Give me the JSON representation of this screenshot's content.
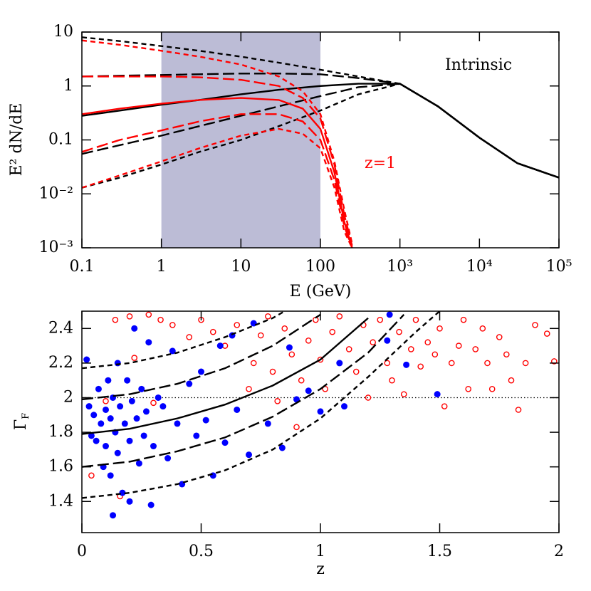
{
  "chart_data": [
    {
      "type": "line",
      "xlabel": "E (GeV)",
      "ylabel": "E² dN/dE",
      "log_x": true,
      "log_y": true,
      "xlim": [
        0.1,
        100000
      ],
      "ylim": [
        0.001,
        10
      ],
      "xticks": [
        0.1,
        1,
        10,
        100,
        {
          "value": 1000,
          "label": "10³"
        },
        {
          "value": 10000,
          "label": "10⁴"
        },
        {
          "value": 100000,
          "label": "10⁵"
        }
      ],
      "yticks": [
        {
          "value": 0.001,
          "label": "10⁻³"
        },
        {
          "value": 0.01,
          "label": "10⁻²"
        },
        0.1,
        1,
        10
      ],
      "shade": {
        "range": [
          1,
          100
        ],
        "color": "#bcbcd6"
      },
      "annotations": [
        {
          "text": "Intrinsic",
          "color": "#000000"
        },
        {
          "text": "z=1",
          "color": "#ff0000"
        }
      ],
      "series": [
        {
          "color": "#000000",
          "dash": "short",
          "x": [
            0.1,
            0.3,
            1,
            3,
            10,
            30,
            100,
            300,
            1000,
            3000,
            10000,
            30000,
            100000
          ],
          "values": [
            8,
            6.8,
            5.5,
            4.5,
            3.5,
            2.7,
            2.0,
            1.5,
            1.1,
            0.42,
            0.11,
            0.037,
            0.02
          ]
        },
        {
          "color": "#000000",
          "dash": "long",
          "x": [
            0.1,
            0.3,
            1,
            3,
            10,
            30,
            100,
            300,
            1000,
            3000,
            10000,
            30000,
            100000
          ],
          "values": [
            1.5,
            1.55,
            1.6,
            1.65,
            1.7,
            1.7,
            1.65,
            1.4,
            1.1,
            0.42,
            0.11,
            0.037,
            0.02
          ]
        },
        {
          "color": "#000000",
          "dash": "solid",
          "x": [
            0.1,
            0.3,
            1,
            3,
            10,
            30,
            100,
            300,
            1000,
            3000,
            10000,
            30000,
            100000
          ],
          "values": [
            0.28,
            0.35,
            0.45,
            0.55,
            0.7,
            0.85,
            1.0,
            1.1,
            1.1,
            0.42,
            0.11,
            0.037,
            0.02
          ]
        },
        {
          "color": "#000000",
          "dash": "long",
          "x": [
            0.1,
            0.3,
            1,
            3,
            10,
            30,
            100,
            300,
            1000,
            3000,
            10000,
            30000,
            100000
          ],
          "values": [
            0.055,
            0.08,
            0.12,
            0.18,
            0.28,
            0.42,
            0.65,
            0.95,
            1.1,
            0.42,
            0.11,
            0.037,
            0.02
          ]
        },
        {
          "color": "#000000",
          "dash": "short",
          "x": [
            0.1,
            0.3,
            1,
            3,
            10,
            30,
            100,
            300,
            1000,
            3000,
            10000,
            30000,
            100000
          ],
          "values": [
            0.013,
            0.02,
            0.035,
            0.06,
            0.1,
            0.18,
            0.35,
            0.7,
            1.1,
            0.42,
            0.11,
            0.037,
            0.02
          ]
        },
        {
          "color": "#ff0000",
          "dash": "short",
          "x": [
            0.1,
            0.3,
            1,
            3,
            10,
            30,
            60,
            100,
            150,
            200,
            250
          ],
          "values": [
            7,
            5.8,
            4.5,
            3.5,
            2.5,
            1.5,
            0.8,
            0.3,
            0.04,
            0.005,
            0.0012
          ]
        },
        {
          "color": "#ff0000",
          "dash": "long",
          "x": [
            0.1,
            0.3,
            1,
            3,
            10,
            30,
            60,
            100,
            150,
            200,
            250
          ],
          "values": [
            1.5,
            1.5,
            1.5,
            1.45,
            1.3,
            1.0,
            0.6,
            0.25,
            0.035,
            0.004,
            0.0011
          ]
        },
        {
          "color": "#ff0000",
          "dash": "solid",
          "x": [
            0.1,
            0.3,
            1,
            3,
            10,
            30,
            60,
            100,
            150,
            200,
            250
          ],
          "values": [
            0.3,
            0.38,
            0.47,
            0.55,
            0.6,
            0.55,
            0.38,
            0.16,
            0.025,
            0.003,
            0.001
          ]
        },
        {
          "color": "#ff0000",
          "dash": "long",
          "x": [
            0.1,
            0.3,
            1,
            3,
            10,
            30,
            60,
            100,
            150,
            200,
            250
          ],
          "values": [
            0.06,
            0.1,
            0.15,
            0.22,
            0.3,
            0.3,
            0.22,
            0.1,
            0.018,
            0.0025,
            0.001
          ]
        },
        {
          "color": "#ff0000",
          "dash": "short",
          "x": [
            0.1,
            0.3,
            1,
            3,
            10,
            30,
            60,
            100,
            150,
            200,
            250
          ],
          "values": [
            0.013,
            0.022,
            0.04,
            0.07,
            0.12,
            0.16,
            0.13,
            0.07,
            0.013,
            0.002,
            0.001
          ]
        }
      ]
    },
    {
      "type": "scatter",
      "xlabel": "z",
      "ylabel_main": "Γ",
      "ylabel_sub": "F",
      "xlim": [
        0,
        2
      ],
      "ylim": [
        1.22,
        2.5
      ],
      "xticks": [
        0,
        0.5,
        1,
        1.5,
        2
      ],
      "yticks": [
        1.4,
        1.6,
        1.8,
        2,
        2.2,
        2.4
      ],
      "hline": 2,
      "lines": [
        {
          "color": "#000000",
          "dash": "short",
          "x": [
            0,
            0.2,
            0.4,
            0.6,
            0.8,
            0.85
          ],
          "values": [
            2.17,
            2.2,
            2.26,
            2.35,
            2.46,
            2.5
          ]
        },
        {
          "color": "#000000",
          "dash": "long",
          "x": [
            0,
            0.2,
            0.4,
            0.6,
            0.8,
            1.0
          ],
          "values": [
            1.99,
            2.02,
            2.08,
            2.17,
            2.3,
            2.48
          ]
        },
        {
          "color": "#000000",
          "dash": "solid",
          "x": [
            0,
            0.2,
            0.4,
            0.6,
            0.8,
            1.0,
            1.2
          ],
          "values": [
            1.79,
            1.82,
            1.88,
            1.96,
            2.07,
            2.22,
            2.46
          ]
        },
        {
          "color": "#000000",
          "dash": "long",
          "x": [
            0,
            0.2,
            0.4,
            0.6,
            0.8,
            1.0,
            1.2,
            1.35
          ],
          "values": [
            1.6,
            1.63,
            1.69,
            1.77,
            1.89,
            2.05,
            2.26,
            2.48
          ]
        },
        {
          "color": "#000000",
          "dash": "short",
          "x": [
            0,
            0.2,
            0.4,
            0.6,
            0.8,
            1.0,
            1.2,
            1.4,
            1.5
          ],
          "values": [
            1.42,
            1.45,
            1.5,
            1.58,
            1.7,
            1.88,
            2.12,
            2.38,
            2.5
          ]
        }
      ],
      "series": [
        {
          "color": "#ff0000",
          "marker": "open",
          "x": [
            0.04,
            0.1,
            0.14,
            0.16,
            0.2,
            0.22,
            0.28,
            0.3,
            0.33,
            0.38,
            0.45,
            0.5,
            0.55,
            0.6,
            0.65,
            0.7,
            0.72,
            0.75,
            0.78,
            0.8,
            0.82,
            0.85,
            0.88,
            0.9,
            0.92,
            0.95,
            0.98,
            1.0,
            1.02,
            1.05,
            1.08,
            1.12,
            1.15,
            1.18,
            1.2,
            1.22,
            1.25,
            1.28,
            1.3,
            1.33,
            1.35,
            1.38,
            1.4,
            1.42,
            1.45,
            1.48,
            1.5,
            1.52,
            1.55,
            1.58,
            1.6,
            1.62,
            1.65,
            1.68,
            1.7,
            1.72,
            1.75,
            1.78,
            1.8,
            1.83,
            1.86,
            1.9,
            1.95,
            1.98
          ],
          "values": [
            1.55,
            1.98,
            2.45,
            1.43,
            2.47,
            2.23,
            2.48,
            1.97,
            2.45,
            2.42,
            2.35,
            2.45,
            2.38,
            2.3,
            2.42,
            2.05,
            2.2,
            2.36,
            2.47,
            2.15,
            1.98,
            2.4,
            2.25,
            1.83,
            2.1,
            2.33,
            2.45,
            2.22,
            2.05,
            2.38,
            2.47,
            2.28,
            2.15,
            2.42,
            2.0,
            2.32,
            2.45,
            2.2,
            2.1,
            2.38,
            2.02,
            2.28,
            2.45,
            2.18,
            2.32,
            2.25,
            2.4,
            1.95,
            2.2,
            2.3,
            2.45,
            2.05,
            2.28,
            2.4,
            2.2,
            2.05,
            2.35,
            2.25,
            2.1,
            1.93,
            2.2,
            2.42,
            2.37,
            2.21
          ]
        },
        {
          "color": "#0000ff",
          "marker": "filled",
          "x": [
            0.02,
            0.03,
            0.04,
            0.05,
            0.06,
            0.07,
            0.08,
            0.09,
            0.1,
            0.1,
            0.11,
            0.12,
            0.12,
            0.13,
            0.13,
            0.14,
            0.15,
            0.15,
            0.16,
            0.17,
            0.18,
            0.19,
            0.2,
            0.2,
            0.21,
            0.22,
            0.23,
            0.24,
            0.25,
            0.26,
            0.27,
            0.28,
            0.29,
            0.3,
            0.32,
            0.34,
            0.36,
            0.38,
            0.4,
            0.42,
            0.45,
            0.48,
            0.5,
            0.52,
            0.55,
            0.58,
            0.6,
            0.63,
            0.65,
            0.7,
            0.72,
            0.78,
            0.84,
            0.87,
            0.9,
            0.95,
            1.0,
            1.08,
            1.1,
            1.28,
            1.29,
            1.36,
            1.49
          ],
          "values": [
            2.22,
            1.95,
            1.78,
            1.9,
            1.75,
            2.05,
            1.85,
            1.6,
            1.93,
            1.72,
            2.1,
            1.88,
            1.55,
            1.32,
            2.0,
            1.8,
            1.68,
            2.2,
            1.95,
            1.45,
            1.85,
            2.1,
            1.75,
            1.4,
            1.98,
            2.4,
            1.88,
            1.62,
            2.05,
            1.78,
            1.92,
            2.32,
            1.38,
            1.72,
            2.0,
            1.95,
            1.65,
            2.27,
            1.85,
            1.5,
            2.08,
            1.78,
            2.15,
            1.87,
            1.55,
            2.3,
            1.74,
            2.36,
            1.93,
            1.67,
            2.43,
            1.85,
            1.71,
            2.29,
            1.99,
            2.04,
            1.92,
            2.2,
            1.95,
            2.33,
            2.48,
            2.19,
            2.02
          ]
        }
      ]
    }
  ]
}
